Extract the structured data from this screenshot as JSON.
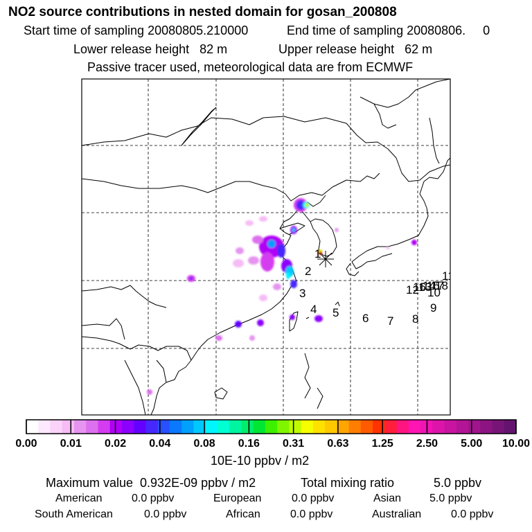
{
  "title": "NO2 source contributions in nested domain for gosan_200808",
  "sampling": {
    "start": "Start time of sampling 20080805.210000",
    "end": "End time of sampling 20080806.     0"
  },
  "release": {
    "lower": "Lower release height   82 m",
    "upper": "Upper release height   62 m"
  },
  "note": "Passive tracer used, meteorological data are from ECMWF",
  "map": {
    "receptor_marker": "star-marker",
    "labels": [
      "1",
      "2",
      "3",
      "4",
      "5",
      "6",
      "7",
      "8",
      "9",
      "10",
      "11",
      "12",
      "13",
      "14",
      "15",
      "16",
      "17",
      "18"
    ]
  },
  "colorbar": {
    "ticks": [
      "0.00",
      "0.01",
      "0.02",
      "0.04",
      "0.08",
      "0.16",
      "0.31",
      "0.63",
      "1.25",
      "2.50",
      "5.00",
      "10.00"
    ],
    "colors": [
      "#ffffff",
      "#fde8fd",
      "#fad2fa",
      "#f6bcf6",
      "#e594ef",
      "#dd70ee",
      "#d43cf0",
      "#b000f6",
      "#8c00ff",
      "#6400ff",
      "#4628ff",
      "#2850ff",
      "#0a78ff",
      "#00a0ff",
      "#00c8ff",
      "#00f5ff",
      "#00ffd2",
      "#00f5a0",
      "#00ee6c",
      "#00e632",
      "#3cf000",
      "#80f500",
      "#c0fa00",
      "#f5ff00",
      "#ffe100",
      "#ffc800",
      "#ffa500",
      "#ff7d00",
      "#ff5a00",
      "#ff3200",
      "#ff1e3c",
      "#ff1480",
      "#ff14b4",
      "#f014b4",
      "#dc14aa",
      "#c814a0",
      "#b41496",
      "#a0148c",
      "#8c1482",
      "#781478",
      "#64146e"
    ],
    "units": "10E-10 ppbv / m2"
  },
  "summary": {
    "maximum": "Maximum value  0.932E-09 ppbv / m2",
    "total_label": "Total mixing ratio",
    "total_value": "5.0 ppbv",
    "regions": [
      {
        "name": "American",
        "value": "0.0 ppbv"
      },
      {
        "name": "European",
        "value": "0.0 ppbv"
      },
      {
        "name": "Asian",
        "value": "5.0 ppbv"
      },
      {
        "name": "South American",
        "value": "0.0 ppbv"
      },
      {
        "name": "African",
        "value": "0.0 ppbv"
      },
      {
        "name": "Australian",
        "value": "0.0 ppbv"
      }
    ]
  }
}
